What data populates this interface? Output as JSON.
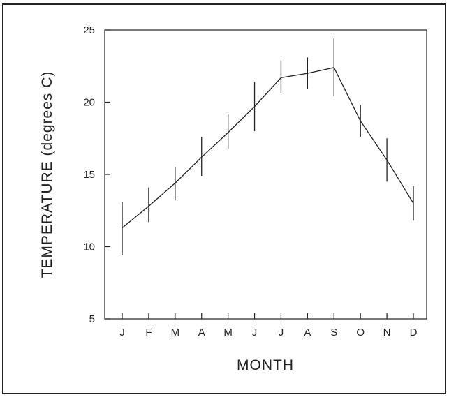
{
  "chart_data": {
    "type": "line",
    "title": "",
    "xlabel": "MONTH",
    "ylabel": "TEMPERATURE  (degrees  C)",
    "categories": [
      "J",
      "F",
      "M",
      "A",
      "M",
      "J",
      "J",
      "A",
      "S",
      "O",
      "N",
      "D"
    ],
    "ylim": [
      5,
      25
    ],
    "yticks": [
      5,
      10,
      15,
      20,
      25
    ],
    "grid": false,
    "series": [
      {
        "values": [
          11.3,
          12.8,
          14.4,
          16.2,
          17.9,
          19.7,
          21.7,
          22.0,
          22.4,
          18.7,
          16.0,
          13.0
        ],
        "err_low": [
          9.4,
          11.7,
          13.2,
          14.9,
          16.8,
          18.0,
          20.6,
          20.9,
          20.4,
          17.6,
          14.5,
          11.8
        ],
        "err_high": [
          13.1,
          14.1,
          15.5,
          17.6,
          19.2,
          21.4,
          22.9,
          23.1,
          24.4,
          19.8,
          17.5,
          14.2
        ]
      }
    ]
  }
}
